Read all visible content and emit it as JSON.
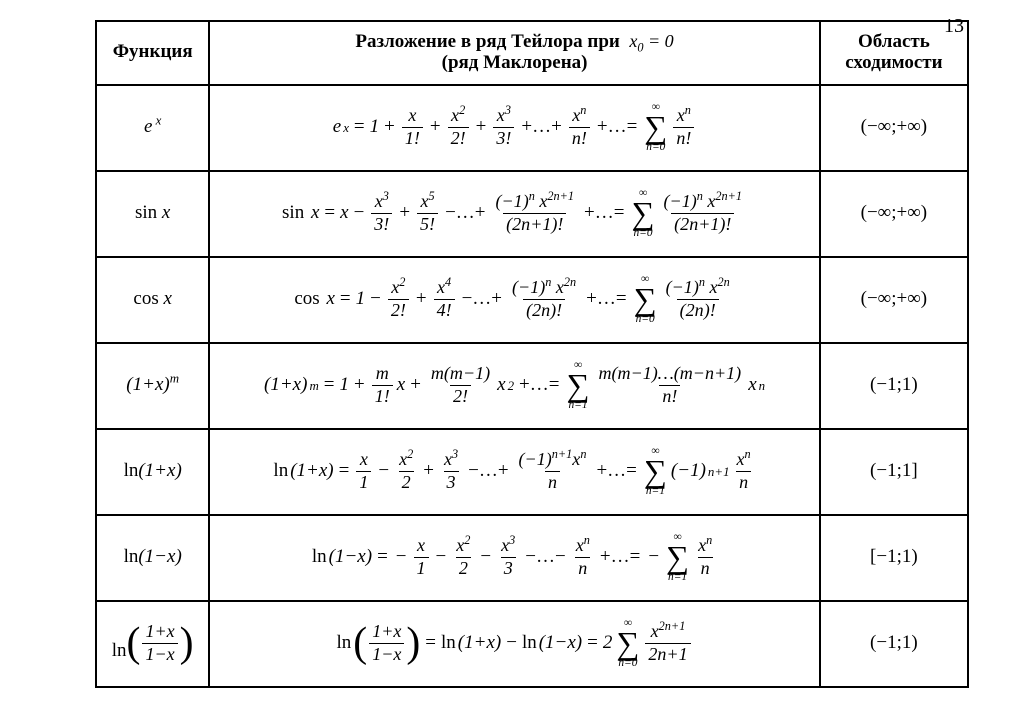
{
  "page_number": "13",
  "background_color": "#ffffff",
  "text_color": "#000000",
  "border_color": "#000000",
  "font_family": "Times New Roman",
  "column_widths_percent": [
    13,
    70,
    17
  ],
  "header": {
    "func": "Функция",
    "expansion_line1": "Разложение в ряд Тейлора  при",
    "expansion_x0": "x₀ = 0",
    "expansion_line2": "(ряд Маклорена)",
    "convergence": "Область сходимости"
  },
  "rows": [
    {
      "func_html": "e<sup>x</sup>",
      "conv": "(−∞;+∞)",
      "series": {
        "lhs": "e^x",
        "terms_text": "1 + x/1! + x^2/2! + x^3/3! + ... + x^n/n! + ...",
        "sigma_from": "n=0",
        "sigma_to": "∞",
        "sigma_term": "x^n / n!"
      }
    },
    {
      "func_html": "sin <i>x</i>",
      "conv": "(−∞;+∞)",
      "series": {
        "lhs": "sin x",
        "terms_text": "x − x^3/3! + x^5/5! − ... + (−1)^n x^{2n+1}/(2n+1)! + ...",
        "sigma_from": "n=0",
        "sigma_to": "∞",
        "sigma_term": "(−1)^n x^{2n+1} / (2n+1)!"
      }
    },
    {
      "func_html": "cos <i>x</i>",
      "conv": "(−∞;+∞)",
      "series": {
        "lhs": "cos x",
        "terms_text": "1 − x^2/2! + x^4/4! − ... + (−1)^n x^{2n}/(2n)! + ...",
        "sigma_from": "n=0",
        "sigma_to": "∞",
        "sigma_term": "(−1)^n x^{2n} / (2n)!"
      }
    },
    {
      "func_html": "(1+<i>x</i>)<sup><i>m</i></sup>",
      "conv": "(−1;1)",
      "series": {
        "lhs": "(1+x)^m",
        "terms_text": "1 + m/1! x + m(m−1)/2! x^2 + ...",
        "sigma_from": "n=1",
        "sigma_to": "∞",
        "sigma_term": "m(m−1)…(m−n+1)/n! · x^n"
      }
    },
    {
      "func_html": "ln(1+<i>x</i>)",
      "conv": "(−1;1]",
      "series": {
        "lhs": "ln(1+x)",
        "terms_text": "x/1 − x^2/2 + x^3/3 − ... + (−1)^{n+1} x^n/n + ...",
        "sigma_from": "n=1",
        "sigma_to": "∞",
        "sigma_term": "(−1)^{n+1} x^n / n"
      }
    },
    {
      "func_html": "ln(1−<i>x</i>)",
      "conv": "[−1;1)",
      "series": {
        "lhs": "ln(1−x)",
        "terms_text": "− x/1 − x^2/2 − x^3/3 − ... − x^n/n + ...",
        "sigma_from": "n=1",
        "sigma_to": "∞",
        "sigma_term": "− x^n / n"
      }
    },
    {
      "func_html": "ln((1+x)/(1−x))",
      "conv": "(−1;1)",
      "series": {
        "lhs": "ln((1+x)/(1−x))",
        "terms_text": "ln(1+x) − ln(1−x)",
        "sigma_from": "n=0",
        "sigma_to": "∞",
        "sigma_term": "2 · x^{2n+1} / (2n+1)"
      }
    }
  ]
}
